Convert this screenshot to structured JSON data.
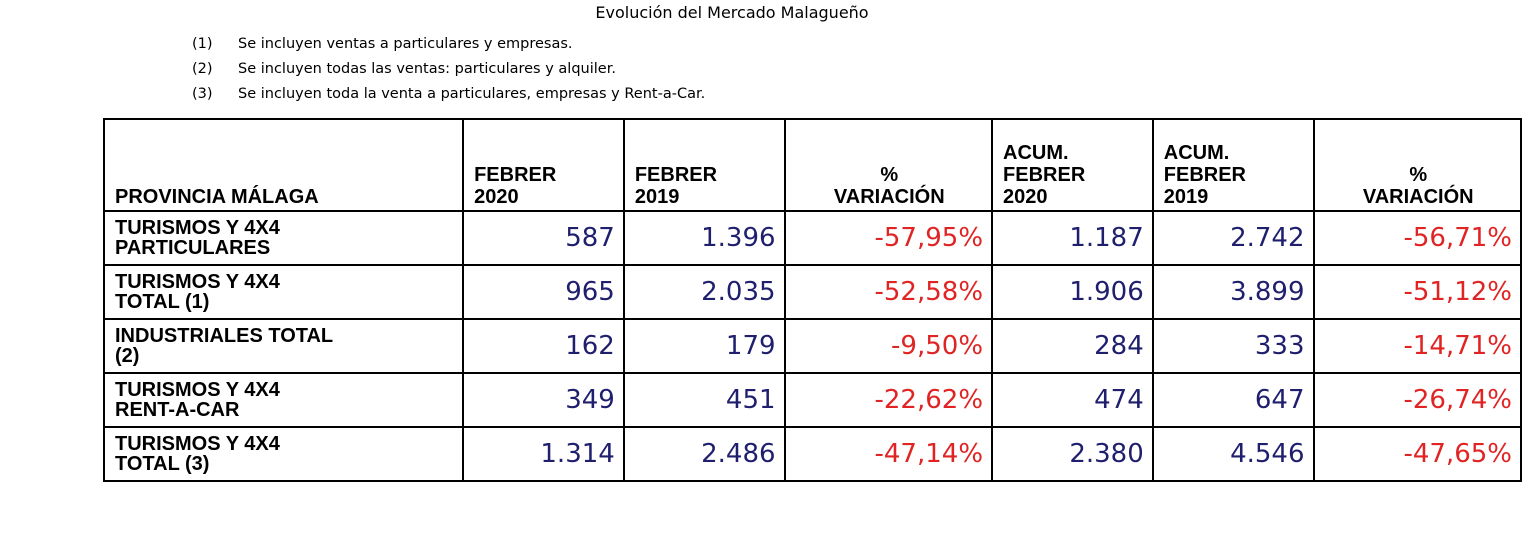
{
  "title": "Evolución del Mercado Malagueño",
  "notes": [
    {
      "num": "(1)",
      "text": "Se incluyen ventas a  particulares y empresas."
    },
    {
      "num": "(2)",
      "text": "Se incluyen todas las ventas: particulares y alquiler."
    },
    {
      "num": "(3)",
      "text": "Se incluyen toda la venta a particulares, empresas y Rent-a-Car."
    }
  ],
  "table": {
    "headers": [
      [
        "PROVINCIA MÁLAGA"
      ],
      [
        "FEBRER",
        "2020"
      ],
      [
        "FEBRER",
        "2019"
      ],
      [
        "%",
        "VARIACIÓN"
      ],
      [
        "ACUM.",
        "FEBRER",
        "2020"
      ],
      [
        "ACUM.",
        "FEBRER",
        "2019"
      ],
      [
        "%",
        "VARIACIÓN"
      ]
    ],
    "rows": [
      {
        "label": [
          "TURISMOS Y 4X4",
          "PARTICULARES"
        ],
        "values": [
          "587",
          "1.396",
          "-57,95%",
          "1.187",
          "2.742",
          "-56,71%"
        ]
      },
      {
        "label": [
          "TURISMOS Y 4X4",
          "TOTAL (1)"
        ],
        "values": [
          "965",
          "2.035",
          "-52,58%",
          "1.906",
          "3.899",
          "-51,12%"
        ]
      },
      {
        "label": [
          "INDUSTRIALES TOTAL",
          "(2)"
        ],
        "values": [
          "162",
          "179",
          "-9,50%",
          "284",
          "333",
          "-14,71%"
        ]
      },
      {
        "label": [
          "TURISMOS Y 4X4",
          "RENT-A-CAR"
        ],
        "values": [
          "349",
          "451",
          "-22,62%",
          "474",
          "647",
          "-26,74%"
        ]
      },
      {
        "label": [
          "TURISMOS Y 4X4",
          "TOTAL (3)"
        ],
        "values": [
          "1.314",
          "2.486",
          "-47,14%",
          "2.380",
          "4.546",
          "-47,65%"
        ]
      }
    ]
  },
  "colors": {
    "number": "#1f1f6e",
    "percent": "#e02424"
  }
}
